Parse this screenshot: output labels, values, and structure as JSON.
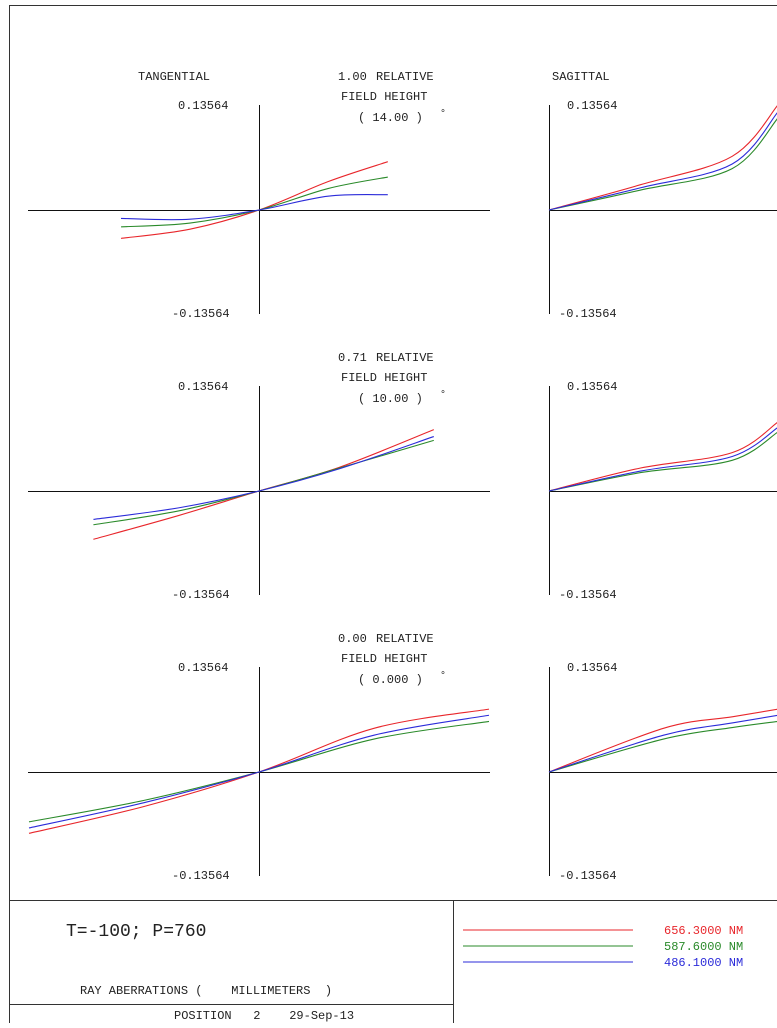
{
  "header": {
    "tangential_label": "TANGENTIAL",
    "sagittal_label": "SAGITTAL"
  },
  "fields": [
    {
      "rel": "1.00",
      "relative_word": "RELATIVE",
      "field_height": "FIELD HEIGHT",
      "angle": "( 14.00 )",
      "deg": "°"
    },
    {
      "rel": "0.71",
      "relative_word": "RELATIVE",
      "field_height": "FIELD HEIGHT",
      "angle": "( 10.00 )",
      "deg": "°"
    },
    {
      "rel": "0.00",
      "relative_word": "RELATIVE",
      "field_height": "FIELD HEIGHT",
      "angle": "( 0.000 )",
      "deg": "°"
    }
  ],
  "footer": {
    "title": "T=-100; P=760",
    "units_line": "RAY ABERRATIONS (    MILLIMETERS  )",
    "position_line": "POSITION   2    29-Sep-13"
  },
  "chart_data": {
    "type": "line",
    "y_max_label": "0.13564",
    "y_min_label": "-0.13564",
    "ylim": [
      -0.13564,
      0.13564
    ],
    "xlim": [
      -1,
      1
    ],
    "legend": [
      {
        "name": "656.3000 NM",
        "color": "#e8262b"
      },
      {
        "name": "587.6000 NM",
        "color": "#2a8a2a"
      },
      {
        "name": "486.1000 NM",
        "color": "#2b2bd9"
      }
    ],
    "panels": [
      {
        "field": "1.00",
        "plot": "tangential",
        "x": [
          -0.6,
          -0.3,
          0,
          0.3,
          0.56
        ],
        "series": [
          {
            "name": "656.3000 NM",
            "values": [
              -0.037,
              -0.025,
              0,
              0.037,
              0.063
            ]
          },
          {
            "name": "587.6000 NM",
            "values": [
              -0.022,
              -0.017,
              0,
              0.028,
              0.043
            ]
          },
          {
            "name": "486.1000 NM",
            "values": [
              -0.011,
              -0.012,
              0,
              0.018,
              0.02
            ]
          }
        ]
      },
      {
        "field": "1.00",
        "plot": "sagittal",
        "x": [
          0,
          0.4,
          0.8,
          1.0
        ],
        "series": [
          {
            "name": "656.3000 NM",
            "values": [
              0,
              0.033,
              0.07,
              0.137
            ]
          },
          {
            "name": "587.6000 NM",
            "values": [
              0,
              0.026,
              0.054,
              0.12
            ]
          },
          {
            "name": "486.1000 NM",
            "values": [
              0,
              0.029,
              0.06,
              0.128
            ]
          }
        ]
      },
      {
        "field": "0.71",
        "plot": "tangential",
        "x": [
          -0.72,
          -0.35,
          0,
          0.35,
          0.76
        ],
        "series": [
          {
            "name": "656.3000 NM",
            "values": [
              -0.063,
              -0.032,
              0,
              0.031,
              0.08
            ]
          },
          {
            "name": "587.6000 NM",
            "values": [
              -0.044,
              -0.026,
              0,
              0.03,
              0.066
            ]
          },
          {
            "name": "486.1000 NM",
            "values": [
              -0.037,
              -0.022,
              0,
              0.029,
              0.071
            ]
          }
        ]
      },
      {
        "field": "0.71",
        "plot": "sagittal",
        "x": [
          0,
          0.4,
          0.8,
          1.0
        ],
        "series": [
          {
            "name": "656.3000 NM",
            "values": [
              0,
              0.03,
              0.05,
              0.09
            ]
          },
          {
            "name": "587.6000 NM",
            "values": [
              0,
              0.024,
              0.04,
              0.077
            ]
          },
          {
            "name": "486.1000 NM",
            "values": [
              0,
              0.026,
              0.045,
              0.083
            ]
          }
        ]
      },
      {
        "field": "0.00",
        "plot": "tangential",
        "x": [
          -1.0,
          -0.5,
          0,
          0.5,
          1.0
        ],
        "series": [
          {
            "name": "656.3000 NM",
            "values": [
              -0.08,
              -0.045,
              0,
              0.057,
              0.082
            ]
          },
          {
            "name": "587.6000 NM",
            "values": [
              -0.065,
              -0.037,
              0,
              0.043,
              0.066
            ]
          },
          {
            "name": "486.1000 NM",
            "values": [
              -0.073,
              -0.04,
              0,
              0.048,
              0.074
            ]
          }
        ]
      },
      {
        "field": "0.00",
        "plot": "sagittal",
        "x": [
          0,
          0.5,
          0.8,
          1.0
        ],
        "series": [
          {
            "name": "656.3000 NM",
            "values": [
              0,
              0.057,
              0.072,
              0.082
            ]
          },
          {
            "name": "587.6000 NM",
            "values": [
              0,
              0.043,
              0.058,
              0.066
            ]
          },
          {
            "name": "486.1000 NM",
            "values": [
              0,
              0.048,
              0.064,
              0.074
            ]
          }
        ]
      }
    ]
  }
}
